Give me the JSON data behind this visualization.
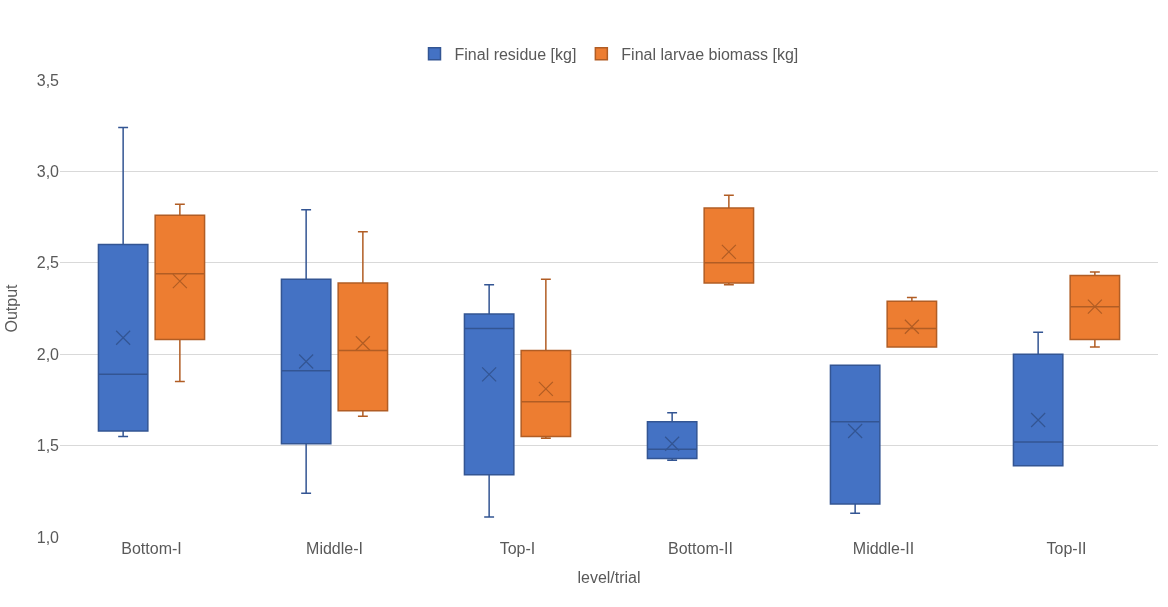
{
  "chart_data": {
    "type": "box",
    "xlabel": "level/trial",
    "ylabel": "Output",
    "categories": [
      "Bottom-I",
      "Middle-I",
      "Top-I",
      "Bottom-II",
      "Middle-II",
      "Top-II"
    ],
    "series": [
      {
        "name": "Final residue [kg]",
        "color": "#4472c4",
        "boxes": [
          {
            "low": 1.55,
            "q1": 1.58,
            "median": 1.89,
            "q3": 2.6,
            "high": 3.24,
            "mean": 2.09
          },
          {
            "low": 1.24,
            "q1": 1.51,
            "median": 1.91,
            "q3": 2.41,
            "high": 2.79,
            "mean": 1.96
          },
          {
            "low": 1.11,
            "q1": 1.34,
            "median": 2.14,
            "q3": 2.22,
            "high": 2.38,
            "mean": 1.89
          },
          {
            "low": 1.42,
            "q1": 1.43,
            "median": 1.48,
            "q3": 1.63,
            "high": 1.68,
            "mean": 1.51
          },
          {
            "low": 1.13,
            "q1": 1.18,
            "median": 1.63,
            "q3": 1.94,
            "high": 1.94,
            "mean": 1.58
          },
          {
            "low": 1.39,
            "q1": 1.39,
            "median": 1.52,
            "q3": 2.0,
            "high": 2.12,
            "mean": 1.64
          }
        ]
      },
      {
        "name": "Final larvae biomass [kg]",
        "color": "#ed7d31",
        "boxes": [
          {
            "low": 1.85,
            "q1": 2.08,
            "median": 2.44,
            "q3": 2.76,
            "high": 2.82,
            "mean": 2.4
          },
          {
            "low": 1.66,
            "q1": 1.69,
            "median": 2.02,
            "q3": 2.39,
            "high": 2.67,
            "mean": 2.06
          },
          {
            "low": 1.54,
            "q1": 1.55,
            "median": 1.74,
            "q3": 2.02,
            "high": 2.41,
            "mean": 1.81
          },
          {
            "low": 2.38,
            "q1": 2.39,
            "median": 2.5,
            "q3": 2.8,
            "high": 2.87,
            "mean": 2.56
          },
          {
            "low": 2.04,
            "q1": 2.04,
            "median": 2.14,
            "q3": 2.29,
            "high": 2.31,
            "mean": 2.15
          },
          {
            "low": 2.04,
            "q1": 2.08,
            "median": 2.26,
            "q3": 2.43,
            "high": 2.45,
            "mean": 2.26
          }
        ]
      }
    ],
    "ylim": [
      1.0,
      3.5
    ],
    "yticks": [
      {
        "value": 1.0,
        "label": "1,0"
      },
      {
        "value": 1.5,
        "label": "1,5"
      },
      {
        "value": 2.0,
        "label": "2,0"
      },
      {
        "value": 2.5,
        "label": "2,5"
      },
      {
        "value": 3.0,
        "label": "3,0"
      },
      {
        "value": 3.5,
        "label": "3,5"
      }
    ],
    "grid": "y",
    "legend": "top",
    "marker": "cross"
  }
}
